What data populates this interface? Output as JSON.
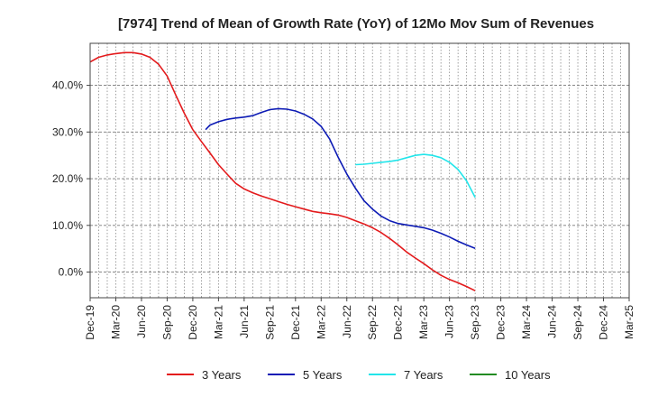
{
  "chart_data": {
    "type": "line",
    "title": "[7974]  Trend of Mean of Growth Rate (YoY) of 12Mo Mov Sum of Revenues",
    "xlabel": "",
    "ylabel": "",
    "x_ticks": [
      "Dec-19",
      "Mar-20",
      "Jun-20",
      "Sep-20",
      "Dec-20",
      "Mar-21",
      "Jun-21",
      "Sep-21",
      "Dec-21",
      "Mar-22",
      "Jun-22",
      "Sep-22",
      "Dec-22",
      "Mar-23",
      "Jun-23",
      "Sep-23",
      "Dec-23",
      "Mar-24",
      "Jun-24",
      "Sep-24",
      "Dec-24",
      "Mar-25"
    ],
    "y_ticks": [
      0,
      10,
      20,
      30,
      40
    ],
    "y_tick_labels": [
      "0.0%",
      "10.0%",
      "20.0%",
      "30.0%",
      "40.0%"
    ],
    "ylim": [
      -5.5,
      49
    ],
    "xlim": [
      0,
      21
    ],
    "grid": true,
    "legend_position": "bottom",
    "series": [
      {
        "name": "3 Years",
        "color": "#e31a1c",
        "points": [
          [
            0,
            45
          ],
          [
            0.33,
            46
          ],
          [
            0.67,
            46.5
          ],
          [
            1,
            46.8
          ],
          [
            1.33,
            47
          ],
          [
            1.67,
            47
          ],
          [
            2,
            46.7
          ],
          [
            2.33,
            46
          ],
          [
            2.67,
            44.5
          ],
          [
            3,
            42
          ],
          [
            3.33,
            38
          ],
          [
            3.67,
            34
          ],
          [
            4,
            30.5
          ],
          [
            4.33,
            28
          ],
          [
            4.67,
            25.5
          ],
          [
            5,
            23
          ],
          [
            5.33,
            21
          ],
          [
            5.67,
            19
          ],
          [
            6,
            17.8
          ],
          [
            6.33,
            17
          ],
          [
            6.67,
            16.3
          ],
          [
            7,
            15.7
          ],
          [
            7.33,
            15.1
          ],
          [
            7.67,
            14.5
          ],
          [
            8,
            14
          ],
          [
            8.33,
            13.5
          ],
          [
            8.67,
            13
          ],
          [
            9,
            12.7
          ],
          [
            9.33,
            12.5
          ],
          [
            9.67,
            12.2
          ],
          [
            10,
            11.7
          ],
          [
            10.33,
            11
          ],
          [
            10.67,
            10.3
          ],
          [
            11,
            9.5
          ],
          [
            11.33,
            8.5
          ],
          [
            11.67,
            7.2
          ],
          [
            12,
            5.8
          ],
          [
            12.33,
            4.3
          ],
          [
            12.67,
            3
          ],
          [
            13,
            1.8
          ],
          [
            13.33,
            0.5
          ],
          [
            13.67,
            -0.7
          ],
          [
            14,
            -1.6
          ],
          [
            14.33,
            -2.3
          ],
          [
            14.67,
            -3.1
          ],
          [
            15,
            -4
          ]
        ]
      },
      {
        "name": "5 Years",
        "color": "#0d1bb5",
        "points": [
          [
            4.5,
            30.5
          ],
          [
            4.67,
            31.5
          ],
          [
            5,
            32.2
          ],
          [
            5.33,
            32.7
          ],
          [
            5.67,
            33
          ],
          [
            6,
            33.2
          ],
          [
            6.33,
            33.5
          ],
          [
            6.67,
            34.2
          ],
          [
            7,
            34.8
          ],
          [
            7.33,
            35
          ],
          [
            7.67,
            34.9
          ],
          [
            8,
            34.5
          ],
          [
            8.33,
            33.8
          ],
          [
            8.67,
            32.8
          ],
          [
            9,
            31.2
          ],
          [
            9.33,
            28.5
          ],
          [
            9.67,
            24.5
          ],
          [
            10,
            21
          ],
          [
            10.33,
            18
          ],
          [
            10.67,
            15.3
          ],
          [
            11,
            13.5
          ],
          [
            11.33,
            12
          ],
          [
            11.67,
            11
          ],
          [
            12,
            10.4
          ],
          [
            12.33,
            10.1
          ],
          [
            12.67,
            9.8
          ],
          [
            13,
            9.5
          ],
          [
            13.33,
            9
          ],
          [
            13.67,
            8.3
          ],
          [
            14,
            7.5
          ],
          [
            14.33,
            6.6
          ],
          [
            14.67,
            5.8
          ],
          [
            15,
            5.1
          ]
        ]
      },
      {
        "name": "7 Years",
        "color": "#22e5ea",
        "points": [
          [
            10.33,
            23
          ],
          [
            10.67,
            23.1
          ],
          [
            11,
            23.3
          ],
          [
            11.33,
            23.5
          ],
          [
            11.67,
            23.7
          ],
          [
            12,
            24
          ],
          [
            12.33,
            24.5
          ],
          [
            12.67,
            25
          ],
          [
            13,
            25.2
          ],
          [
            13.33,
            25
          ],
          [
            13.67,
            24.5
          ],
          [
            14,
            23.5
          ],
          [
            14.33,
            22
          ],
          [
            14.67,
            19.5
          ],
          [
            15,
            16
          ]
        ]
      },
      {
        "name": "10 Years",
        "color": "#228b22",
        "points": []
      }
    ]
  }
}
